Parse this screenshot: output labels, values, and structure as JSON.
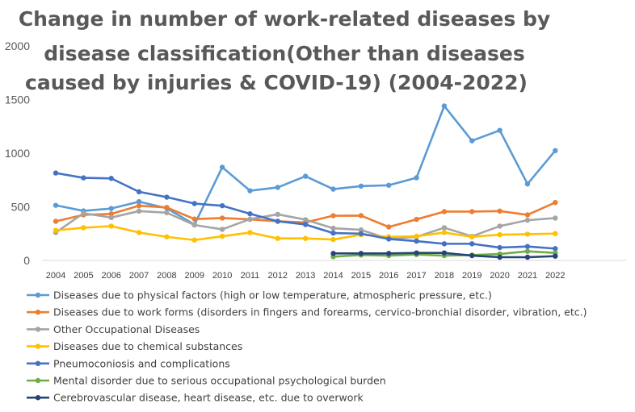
{
  "chart_data": {
    "type": "line",
    "title_lines": [
      "Change in number of work-related diseases by",
      "disease classification(Other than diseases",
      "caused by injuries & COVID-19) (2004-2022)"
    ],
    "xlabel": "",
    "ylabel": "",
    "ylim": [
      0,
      2000
    ],
    "yticks": [
      0,
      500,
      1000,
      1500,
      2000
    ],
    "grid": false,
    "legend_position": "bottom",
    "categories": [
      "2004",
      "2005",
      "2006",
      "2007",
      "2008",
      "2009",
      "2010",
      "2011",
      "2012",
      "2013",
      "2014",
      "2015",
      "2016",
      "2017",
      "2018",
      "2019",
      "2020",
      "2021",
      "2022"
    ],
    "series": [
      {
        "name": "Diseases due to physical factors (high or low temperature, atmospheric pressure, etc.)",
        "color": "#5b9bd5",
        "values": [
          514,
          462,
          484,
          548,
          487,
          334,
          869,
          650,
          681,
          785,
          665,
          693,
          701,
          771,
          1440,
          1116,
          1213,
          713,
          1024
        ]
      },
      {
        "name": "Diseases due to work forms (disorders in fingers and forearms, cervico-bronchial disorder, vibration, etc.)",
        "color": "#ed7d31",
        "values": [
          365,
          425,
          434,
          510,
          494,
          386,
          395,
          383,
          365,
          354,
          417,
          418,
          312,
          383,
          455,
          455,
          460,
          425,
          540
        ]
      },
      {
        "name": "Other Occupational Diseases",
        "color": "#a5a5a5",
        "values": [
          260,
          440,
          400,
          460,
          445,
          330,
          290,
          385,
          430,
          380,
          300,
          285,
          200,
          220,
          305,
          225,
          320,
          375,
          395
        ]
      },
      {
        "name": "Diseases due to chemical substances",
        "color": "#ffc000",
        "values": [
          280,
          305,
          320,
          260,
          220,
          190,
          225,
          260,
          205,
          205,
          195,
          240,
          220,
          225,
          260,
          220,
          240,
          245,
          250
        ]
      },
      {
        "name": "Pneumoconiosis and complications",
        "color": "#4472c4",
        "values": [
          815,
          770,
          765,
          640,
          590,
          530,
          510,
          435,
          365,
          335,
          255,
          250,
          200,
          180,
          155,
          155,
          120,
          130,
          110
        ]
      },
      {
        "name": "Mental disorder due to serious occupational psychological burden",
        "color": "#70ad47",
        "values": [
          null,
          null,
          null,
          null,
          null,
          null,
          null,
          null,
          null,
          null,
          35,
          50,
          45,
          55,
          45,
          50,
          60,
          85,
          70
        ]
      },
      {
        "name": "Cerebrovascular disease, heart disease, etc. due to overwork",
        "color": "#264478",
        "values": [
          null,
          null,
          null,
          null,
          null,
          null,
          null,
          null,
          null,
          null,
          65,
          65,
          65,
          70,
          70,
          45,
          30,
          30,
          40
        ]
      }
    ]
  }
}
